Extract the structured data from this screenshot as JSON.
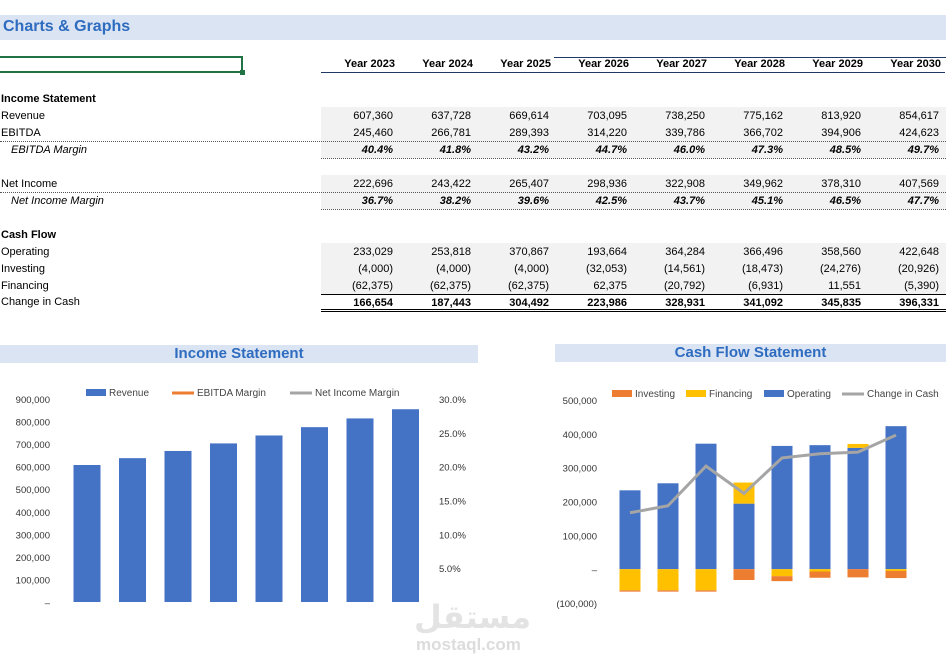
{
  "page_title": "Charts & Graphs",
  "years": [
    "Year 2023",
    "Year 2024",
    "Year 2025",
    "Year 2026",
    "Year 2027",
    "Year 2028",
    "Year 2029",
    "Year 2030"
  ],
  "sections": {
    "income_statement": "Income Statement",
    "cash_flow": "Cash Flow"
  },
  "rows": [
    {
      "label": "Revenue",
      "values": [
        "607,360",
        "637,728",
        "669,614",
        "703,095",
        "738,250",
        "775,162",
        "813,920",
        "854,617"
      ]
    },
    {
      "label": "EBITDA",
      "values": [
        "245,460",
        "266,781",
        "289,393",
        "314,220",
        "339,786",
        "366,702",
        "394,906",
        "424,623"
      ]
    },
    {
      "label": "EBITDA Margin",
      "values": [
        "40.4%",
        "41.8%",
        "43.2%",
        "44.7%",
        "46.0%",
        "47.3%",
        "48.5%",
        "49.7%"
      ]
    },
    {
      "label": "Net Income",
      "values": [
        "222,696",
        "243,422",
        "265,407",
        "298,936",
        "322,908",
        "349,962",
        "378,310",
        "407,569"
      ]
    },
    {
      "label": "Net Income Margin",
      "values": [
        "36.7%",
        "38.2%",
        "39.6%",
        "42.5%",
        "43.7%",
        "45.1%",
        "46.5%",
        "47.7%"
      ]
    },
    {
      "label": "Operating",
      "values": [
        "233,029",
        "253,818",
        "370,867",
        "193,664",
        "364,284",
        "366,496",
        "358,560",
        "422,648"
      ]
    },
    {
      "label": "Investing",
      "values": [
        "(4,000)",
        "(4,000)",
        "(4,000)",
        "(32,053)",
        "(14,561)",
        "(18,473)",
        "(24,276)",
        "(20,926)"
      ]
    },
    {
      "label": "Financing",
      "values": [
        "(62,375)",
        "(62,375)",
        "(62,375)",
        "62,375",
        "(20,792)",
        "(6,931)",
        "11,551",
        "(5,390)"
      ]
    },
    {
      "label": "Change in Cash",
      "values": [
        "166,654",
        "187,443",
        "304,492",
        "223,986",
        "328,931",
        "341,092",
        "345,835",
        "396,331"
      ]
    }
  ],
  "chart_data": [
    {
      "type": "bar",
      "title": "Income Statement",
      "categories": [
        "Year 2023",
        "Year 2024",
        "Year 2025",
        "Year 2026",
        "Year 2027",
        "Year 2028",
        "Year 2029",
        "Year 2030"
      ],
      "series": [
        {
          "name": "Revenue",
          "kind": "bar",
          "axis": "left",
          "values": [
            607360,
            637728,
            669614,
            703095,
            738250,
            775162,
            813920,
            854617
          ]
        },
        {
          "name": "EBITDA Margin",
          "kind": "line",
          "axis": "right",
          "values": [
            0.404,
            0.418,
            0.432,
            0.447,
            0.46,
            0.473,
            0.485,
            0.497
          ]
        },
        {
          "name": "Net Income Margin",
          "kind": "line",
          "axis": "right",
          "values": [
            0.367,
            0.382,
            0.396,
            0.425,
            0.437,
            0.451,
            0.465,
            0.477
          ]
        }
      ],
      "ylim_left": [
        0,
        900000
      ],
      "yticks_left": [
        "–",
        "100,000",
        "200,000",
        "300,000",
        "400,000",
        "500,000",
        "600,000",
        "700,000",
        "800,000",
        "900,000"
      ],
      "ylim_right": [
        0,
        0.3
      ],
      "yticks_right": [
        "5.0%",
        "10.0%",
        "15.0%",
        "20.0%",
        "25.0%",
        "30.0%"
      ],
      "legend": "top",
      "colors": {
        "Revenue": "#4472c4",
        "EBITDA Margin": "#ed7d31",
        "Net Income Margin": "#a5a5a5"
      }
    },
    {
      "type": "bar",
      "title": "Cash Flow Statement",
      "categories": [
        "Year 2023",
        "Year 2024",
        "Year 2025",
        "Year 2026",
        "Year 2027",
        "Year 2028",
        "Year 2029",
        "Year 2030"
      ],
      "series": [
        {
          "name": "Investing",
          "kind": "stacked-bar",
          "values": [
            -4000,
            -4000,
            -4000,
            -32053,
            -14561,
            -18473,
            -24276,
            -20926
          ]
        },
        {
          "name": "Financing",
          "kind": "stacked-bar",
          "values": [
            -62375,
            -62375,
            -62375,
            62375,
            -20792,
            -6931,
            11551,
            -5390
          ]
        },
        {
          "name": "Operating",
          "kind": "stacked-bar",
          "values": [
            233029,
            253818,
            370867,
            193664,
            364284,
            366496,
            358560,
            422648
          ]
        },
        {
          "name": "Change in Cash",
          "kind": "line",
          "values": [
            166654,
            187443,
            304492,
            223986,
            328931,
            341092,
            345835,
            396331
          ]
        }
      ],
      "ylim": [
        -100000,
        500000
      ],
      "yticks": [
        "(100,000)",
        "–",
        "100,000",
        "200,000",
        "300,000",
        "400,000",
        "500,000"
      ],
      "legend": "top",
      "colors": {
        "Investing": "#ed7d31",
        "Financing": "#ffc000",
        "Operating": "#4472c4",
        "Change in Cash": "#a5a5a5"
      }
    }
  ],
  "watermark": {
    "arabic": "مستقل",
    "latin": "mostaql.com"
  }
}
